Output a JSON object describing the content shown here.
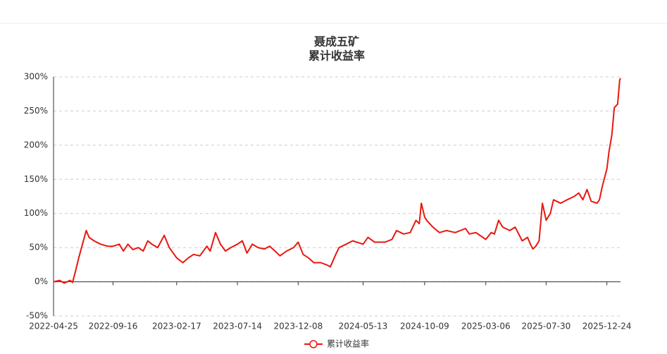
{
  "chart_data": {
    "type": "line",
    "title": "聂成五矿",
    "subtitle": "累计收益率",
    "x": [
      "2022-04-25",
      "2022-05-10",
      "2022-05-21",
      "2022-06-04",
      "2022-06-10",
      "2022-06-17",
      "2022-06-25",
      "2022-07-04",
      "2022-07-13",
      "2022-07-20",
      "2022-08-01",
      "2022-08-17",
      "2022-09-03",
      "2022-09-16",
      "2022-10-01",
      "2022-10-11",
      "2022-10-22",
      "2022-11-03",
      "2022-11-16",
      "2022-11-28",
      "2022-12-09",
      "2022-12-19",
      "2023-01-02",
      "2023-01-18",
      "2023-01-30",
      "2023-02-17",
      "2023-03-04",
      "2023-03-17",
      "2023-03-30",
      "2023-04-14",
      "2023-05-01",
      "2023-05-09",
      "2023-05-22",
      "2023-06-03",
      "2023-06-15",
      "2023-06-28",
      "2023-07-14",
      "2023-07-26",
      "2023-08-06",
      "2023-08-19",
      "2023-09-02",
      "2023-09-17",
      "2023-09-30",
      "2023-10-13",
      "2023-10-25",
      "2023-11-10",
      "2023-11-27",
      "2023-12-08",
      "2023-12-20",
      "2024-01-02",
      "2024-01-15",
      "2024-02-01",
      "2024-02-14",
      "2024-02-24",
      "2024-03-08",
      "2024-03-16",
      "2024-04-02",
      "2024-04-18",
      "2024-05-13",
      "2024-05-25",
      "2024-06-10",
      "2024-07-05",
      "2024-07-22",
      "2024-08-02",
      "2024-08-19",
      "2024-09-04",
      "2024-09-18",
      "2024-09-26",
      "2024-10-01",
      "2024-10-09",
      "2024-10-14",
      "2024-10-29",
      "2024-11-14",
      "2024-12-01",
      "2024-12-22",
      "2025-01-16",
      "2025-01-25",
      "2025-02-10",
      "2025-03-06",
      "2025-03-19",
      "2025-03-27",
      "2025-04-06",
      "2025-04-16",
      "2025-05-03",
      "2025-05-16",
      "2025-06-02",
      "2025-06-15",
      "2025-06-22",
      "2025-06-28",
      "2025-07-05",
      "2025-07-13",
      "2025-07-21",
      "2025-07-30",
      "2025-08-09",
      "2025-08-17",
      "2025-09-03",
      "2025-09-19",
      "2025-10-06",
      "2025-10-17",
      "2025-10-27",
      "2025-11-06",
      "2025-11-16",
      "2025-11-30",
      "2025-12-06",
      "2025-12-13",
      "2025-12-24",
      "2025-12-29",
      "2026-01-05",
      "2026-01-11",
      "2026-01-19",
      "2026-01-24",
      "2026-01-26"
    ],
    "series": [
      {
        "name": "累计收益率",
        "color": "#e8170f",
        "values": [
          0,
          2,
          -2,
          2,
          -1,
          15,
          35,
          55,
          75,
          65,
          60,
          55,
          52,
          52,
          55,
          45,
          55,
          47,
          50,
          45,
          60,
          55,
          50,
          68,
          50,
          35,
          28,
          35,
          40,
          38,
          52,
          45,
          72,
          55,
          45,
          50,
          55,
          60,
          42,
          55,
          50,
          48,
          52,
          45,
          38,
          45,
          50,
          58,
          40,
          35,
          28,
          28,
          25,
          22,
          40,
          50,
          55,
          60,
          55,
          65,
          58,
          58,
          62,
          75,
          70,
          72,
          90,
          85,
          115,
          95,
          90,
          80,
          72,
          75,
          72,
          78,
          70,
          72,
          62,
          72,
          70,
          90,
          80,
          75,
          80,
          60,
          65,
          55,
          48,
          52,
          60,
          115,
          90,
          100,
          120,
          115,
          120,
          125,
          130,
          120,
          135,
          118,
          115,
          120,
          140,
          165,
          190,
          215,
          255,
          260,
          295,
          298
        ]
      }
    ],
    "xlim": [
      "2022-04-25",
      "2026-01-26"
    ],
    "xticks": [
      "2022-04-25",
      "2022-09-16",
      "2023-02-17",
      "2023-07-14",
      "2023-12-08",
      "2024-05-13",
      "2024-10-09",
      "2025-03-06",
      "2025-07-30",
      "2025-12-24"
    ],
    "ylim": [
      -50,
      300
    ],
    "yticks": [
      {
        "value": -50,
        "label": "-50%"
      },
      {
        "value": 0,
        "label": "0%"
      },
      {
        "value": 50,
        "label": "50%"
      },
      {
        "value": 100,
        "label": "100%"
      },
      {
        "value": 150,
        "label": "150%"
      },
      {
        "value": 200,
        "label": "200%"
      },
      {
        "value": 250,
        "label": "250%"
      },
      {
        "value": 300,
        "label": "300%"
      }
    ],
    "grid": true,
    "legend": "bottom"
  }
}
